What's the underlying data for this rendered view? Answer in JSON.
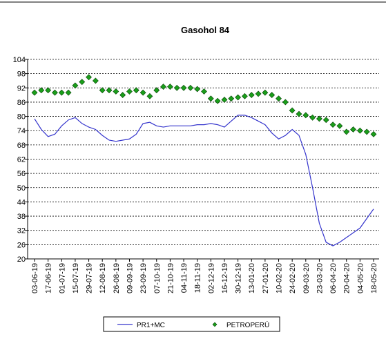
{
  "chart_data": {
    "type": "line",
    "title": "Gasohol 84",
    "categories": [
      "03-06-19",
      null,
      "17-06-19",
      null,
      "01-07-19",
      null,
      "15-07-19",
      null,
      "29-07-19",
      null,
      "12-08-19",
      null,
      "26-08-19",
      null,
      "09-09-19",
      null,
      "23-09-19",
      null,
      "07-10-19",
      null,
      "21-10-19",
      null,
      "04-11-19",
      null,
      "18-11-19",
      null,
      "02-12-19",
      null,
      "16-12-19",
      null,
      "30-12-19",
      null,
      "13-01-20",
      null,
      "27-01-20",
      null,
      "10-02-20",
      null,
      "24-02-20",
      null,
      "09-03-20",
      null,
      "23-03-20",
      null,
      "06-04-20",
      null,
      "20-04-20",
      null,
      "04-05-20",
      null,
      "18-05-20"
    ],
    "series": [
      {
        "name": "PR1+MC",
        "color": "#3333cc",
        "mode": "line",
        "values": [
          79,
          74.5,
          71.5,
          72.5,
          76,
          78.5,
          79.5,
          77,
          75.5,
          74.5,
          72,
          70,
          69.5,
          70,
          70.5,
          72.5,
          77,
          77.5,
          76,
          75.5,
          76,
          76,
          76,
          76,
          76.5,
          76.5,
          77,
          76.5,
          75.5,
          78,
          80.5,
          80.5,
          79.5,
          78,
          76.5,
          73,
          70.5,
          72,
          74.5,
          72,
          64,
          50,
          35,
          27,
          25.5,
          27,
          29,
          31,
          33,
          37,
          41
        ]
      },
      {
        "name": "PETROPERÚ",
        "color": "#1a9e1a",
        "mode": "markers",
        "values": [
          90,
          91,
          91,
          90,
          90,
          90,
          93,
          94.5,
          96.5,
          95,
          91,
          91,
          90.5,
          89,
          90.5,
          91,
          90,
          88.5,
          91,
          92.5,
          92.5,
          92,
          92,
          92,
          91.5,
          90.5,
          87.5,
          86.5,
          87,
          87.5,
          88,
          88.5,
          89,
          89.5,
          90,
          89,
          87.5,
          86,
          82.5,
          81,
          80.5,
          79.5,
          79,
          78.5,
          76.5,
          76,
          73.5,
          74.5,
          74,
          73.5,
          72.5
        ]
      }
    ],
    "ylim": [
      20,
      104
    ],
    "yticks": [
      20,
      26,
      32,
      38,
      44,
      50,
      56,
      62,
      68,
      74,
      80,
      86,
      92,
      98,
      104
    ],
    "grid": true
  }
}
